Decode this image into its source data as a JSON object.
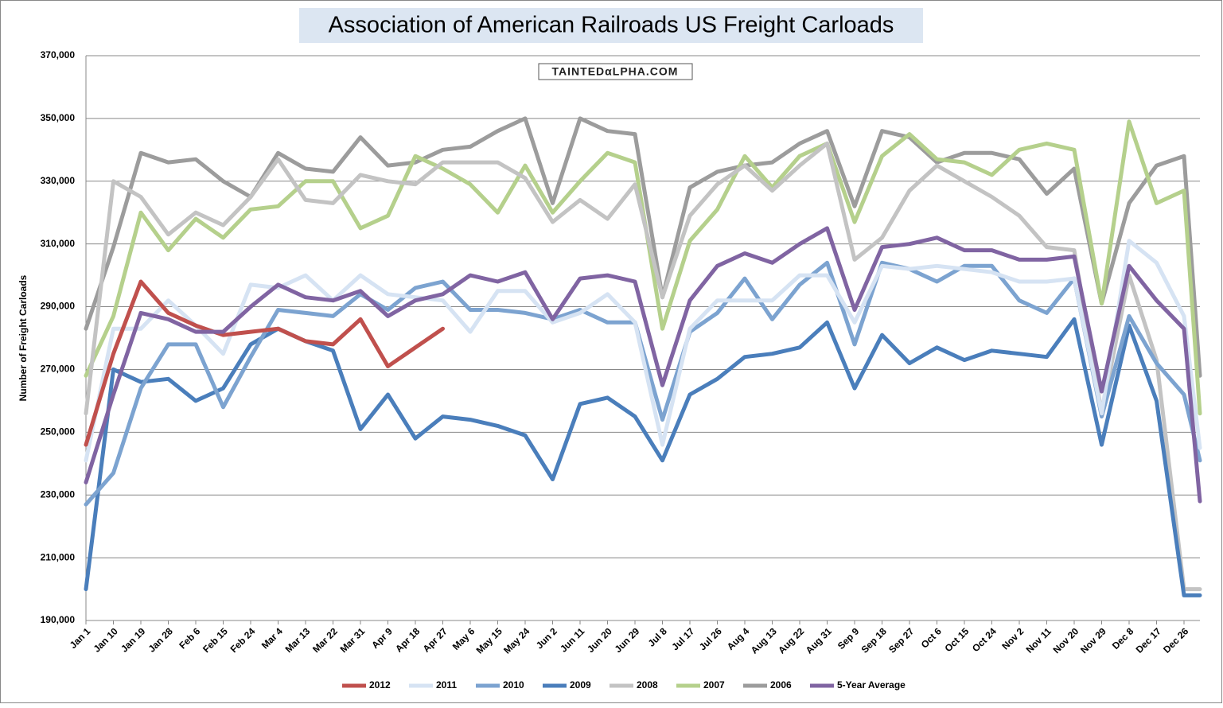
{
  "chart_data": {
    "type": "line",
    "title": "Association of American Railroads US Freight Carloads",
    "watermark": "TAINTEDαLPHA.COM",
    "y_label": "Number of Freight Carloads",
    "categories": [
      "Jan 1",
      "Jan 10",
      "Jan 19",
      "Jan 28",
      "Feb 6",
      "Feb 15",
      "Feb 24",
      "Mar 4",
      "Mar 13",
      "Mar 22",
      "Mar 31",
      "Apr 9",
      "Apr 18",
      "Apr 27",
      "May 6",
      "May 15",
      "May 24",
      "Jun 2",
      "Jun 11",
      "Jun 20",
      "Jun 29",
      "Jul 8",
      "Jul 17",
      "Jul 26",
      "Aug 4",
      "Aug 13",
      "Aug 22",
      "Aug 31",
      "Sep 9",
      "Sep 18",
      "Sep 27",
      "Oct 6",
      "Oct 15",
      "Oct 24",
      "Nov 2",
      "Nov 11",
      "Nov 20",
      "Nov 29",
      "Dec 8",
      "Dec 17",
      "Dec 26",
      null
    ],
    "ylim": [
      190000,
      370000
    ],
    "yticks": [
      {
        "value": 190000,
        "label": "190,000"
      },
      {
        "value": 210000,
        "label": "210,000"
      },
      {
        "value": 230000,
        "label": "230,000"
      },
      {
        "value": 250000,
        "label": "250,000"
      },
      {
        "value": 270000,
        "label": "270,000"
      },
      {
        "value": 290000,
        "label": "290,000"
      },
      {
        "value": 310000,
        "label": "310,000"
      },
      {
        "value": 330000,
        "label": "330,000"
      },
      {
        "value": 350000,
        "label": "350,000"
      },
      {
        "value": 370000,
        "label": "370,000"
      }
    ],
    "grid": true,
    "series": [
      {
        "name": "2012",
        "color": "#c0504d",
        "values": [
          246000,
          275000,
          298000,
          288000,
          284000,
          281000,
          282000,
          283000,
          279000,
          278000,
          286000,
          271000,
          277000,
          283000,
          null,
          null,
          null,
          null,
          null,
          null,
          null,
          null,
          null,
          null,
          null,
          null,
          null,
          null,
          null,
          null,
          null,
          null,
          null,
          null,
          null,
          null,
          null,
          null,
          null,
          null,
          null,
          null
        ]
      },
      {
        "name": "2011",
        "color": "#d6e3f3",
        "values": [
          241000,
          283000,
          283000,
          292000,
          284000,
          275000,
          297000,
          296000,
          300000,
          292000,
          300000,
          294000,
          293000,
          292000,
          282000,
          295000,
          295000,
          285000,
          288000,
          294000,
          285000,
          246000,
          283000,
          292000,
          292000,
          292000,
          300000,
          300000,
          285000,
          303000,
          302000,
          303000,
          302000,
          301000,
          298000,
          298000,
          299000,
          256000,
          311000,
          304000,
          287000,
          245000
        ]
      },
      {
        "name": "2010",
        "color": "#7ca3d0",
        "values": [
          227000,
          237000,
          264000,
          278000,
          278000,
          258000,
          274000,
          289000,
          288000,
          287000,
          294000,
          289000,
          296000,
          298000,
          289000,
          289000,
          288000,
          286000,
          289000,
          285000,
          285000,
          254000,
          282000,
          288000,
          299000,
          286000,
          297000,
          304000,
          278000,
          304000,
          302000,
          298000,
          303000,
          303000,
          292000,
          288000,
          299000,
          255000,
          287000,
          272000,
          262000,
          241000
        ]
      },
      {
        "name": "2009",
        "color": "#4a7ebb",
        "values": [
          200000,
          270000,
          266000,
          267000,
          260000,
          264000,
          278000,
          283000,
          279000,
          276000,
          251000,
          262000,
          248000,
          255000,
          254000,
          252000,
          249000,
          235000,
          259000,
          261000,
          255000,
          241000,
          262000,
          267000,
          274000,
          275000,
          277000,
          285000,
          264000,
          281000,
          272000,
          277000,
          273000,
          276000,
          275000,
          274000,
          286000,
          246000,
          284000,
          260000,
          198000,
          198000
        ]
      },
      {
        "name": "2008",
        "color": "#c3c3c3",
        "values": [
          256000,
          330000,
          325000,
          313000,
          320000,
          316000,
          325000,
          337000,
          324000,
          323000,
          332000,
          330000,
          329000,
          336000,
          336000,
          336000,
          331000,
          317000,
          324000,
          318000,
          329000,
          293000,
          319000,
          329000,
          335000,
          327000,
          335000,
          342000,
          305000,
          312000,
          327000,
          335000,
          330000,
          325000,
          319000,
          309000,
          308000,
          256000,
          300000,
          273000,
          200000,
          200000
        ]
      },
      {
        "name": "2007",
        "color": "#b5d08c",
        "values": [
          268000,
          287000,
          320000,
          308000,
          318000,
          312000,
          321000,
          322000,
          330000,
          330000,
          315000,
          319000,
          338000,
          334000,
          329000,
          320000,
          335000,
          320000,
          330000,
          339000,
          336000,
          283000,
          311000,
          321000,
          338000,
          328000,
          338000,
          342000,
          317000,
          338000,
          345000,
          337000,
          336000,
          332000,
          340000,
          342000,
          340000,
          291000,
          349000,
          323000,
          327000,
          256000
        ]
      },
      {
        "name": "2006",
        "color": "#9c9c9c",
        "values": [
          283000,
          309000,
          339000,
          336000,
          337000,
          330000,
          325000,
          339000,
          334000,
          333000,
          344000,
          335000,
          336000,
          340000,
          341000,
          346000,
          350000,
          323000,
          350000,
          346000,
          345000,
          293000,
          328000,
          333000,
          335000,
          336000,
          342000,
          346000,
          322000,
          346000,
          344000,
          336000,
          339000,
          339000,
          337000,
          326000,
          334000,
          291000,
          323000,
          335000,
          338000,
          268000
        ]
      },
      {
        "name": "5-Year Average",
        "color": "#8064a2",
        "values": [
          234000,
          262000,
          288000,
          286000,
          282000,
          282000,
          290000,
          297000,
          293000,
          292000,
          295000,
          287000,
          292000,
          294000,
          300000,
          298000,
          301000,
          286000,
          299000,
          300000,
          298000,
          265000,
          292000,
          303000,
          307000,
          304000,
          310000,
          315000,
          289000,
          309000,
          310000,
          312000,
          308000,
          308000,
          305000,
          305000,
          306000,
          263000,
          303000,
          292000,
          283000,
          228000
        ]
      }
    ]
  }
}
